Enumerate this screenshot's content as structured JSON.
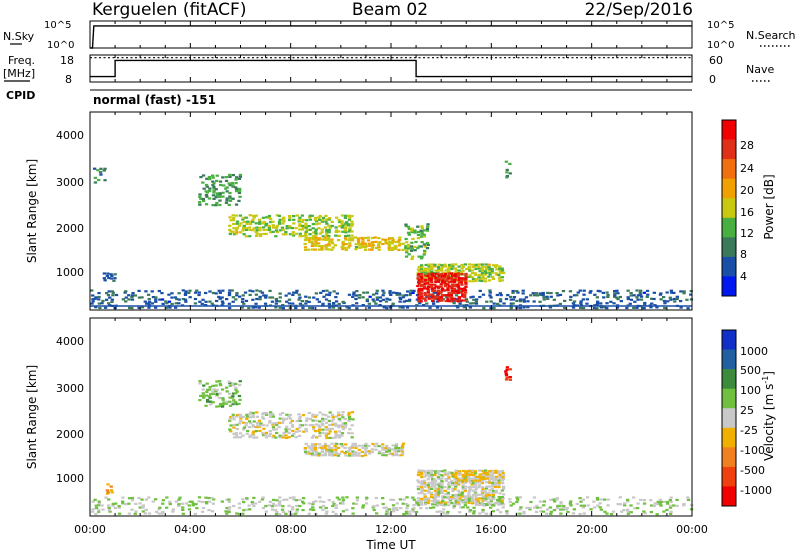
{
  "header": {
    "station": "Kerguelen (fitACF)",
    "beam": "Beam 02",
    "date": "22/Sep/2016"
  },
  "top_panels": {
    "nsky_label": "N.Sky",
    "nsky_ticks": [
      "10^5",
      "10^0"
    ],
    "nsearch_label": "N.Search",
    "nsearch_ticks": [
      "10^5",
      "10^0"
    ],
    "freq_label": "Freq.",
    "freq_unit": "[MHz]",
    "freq_ticks": [
      "18",
      "8"
    ],
    "nave_label": "Nave",
    "nave_ticks": [
      "60",
      "0"
    ],
    "cpid_label": "CPID",
    "cpid_text": "normal (fast) -151"
  },
  "x_axis": {
    "label": "Time UT",
    "ticks": [
      "00:00",
      "04:00",
      "08:00",
      "12:00",
      "16:00",
      "20:00",
      "00:00"
    ]
  },
  "power_panel": {
    "ylabel": "Slant Range [km]",
    "yticks": [
      "4000",
      "3000",
      "2000",
      "1000"
    ],
    "colorbar_label": "Power [dB]",
    "colorbar_ticks": [
      "28",
      "24",
      "20",
      "16",
      "12",
      "8",
      "4"
    ],
    "colors": [
      "#0018f0",
      "#1a4fa8",
      "#3a7a5a",
      "#48b040",
      "#c8c810",
      "#f0a000",
      "#f07010",
      "#e03018",
      "#f00000"
    ]
  },
  "velocity_panel": {
    "ylabel": "Slant Range [km]",
    "yticks": [
      "4000",
      "3000",
      "2000",
      "1000"
    ],
    "colorbar_label": "Velocity [m s",
    "colorbar_label_sup": "-1",
    "colorbar_label_end": "]",
    "colorbar_ticks": [
      "1000",
      "500",
      "100",
      "25",
      "-25",
      "-100",
      "-500",
      "-1000"
    ],
    "colors": [
      "#1030c8",
      "#2060a0",
      "#3c8a3c",
      "#70c040",
      "#c8c8c8",
      "#f0b000",
      "#f08020",
      "#f04010",
      "#f00000"
    ]
  },
  "chart_data": [
    {
      "type": "line",
      "title": "N.Sky / N.Search",
      "xlabel": "Time UT",
      "xlim": [
        0,
        24
      ],
      "ylim_log10": [
        0,
        5
      ],
      "series": [
        {
          "x": [
            0,
            0.1,
            0.15,
            24
          ],
          "values": [
            0,
            0,
            4.1,
            4.1
          ]
        }
      ]
    },
    {
      "type": "line",
      "title": "Freq. / Nave",
      "xlabel": "Time UT",
      "xlim": [
        0,
        24
      ],
      "ylim": [
        8,
        18
      ],
      "series": [
        {
          "x": [
            0,
            1,
            1,
            13,
            13,
            24
          ],
          "values": [
            10,
            10,
            16,
            16,
            10,
            10
          ]
        },
        {
          "x": [
            0,
            24
          ],
          "values": [
            17,
            17
          ]
        }
      ]
    },
    {
      "type": "heatmap",
      "title": "Power [dB]",
      "xlabel": "Time UT",
      "ylabel": "Slant Range [km]",
      "xlim": [
        0,
        24
      ],
      "ylim": [
        180,
        4600
      ],
      "zlim": [
        0,
        30
      ],
      "regions": [
        {
          "t0": 0.0,
          "t1": 24.0,
          "r0": 200,
          "r1": 620,
          "density": 0.35,
          "v": 6
        },
        {
          "t0": 0.1,
          "t1": 0.6,
          "r0": 3000,
          "r1": 3400,
          "density": 0.3,
          "v": 8
        },
        {
          "t0": 0.5,
          "t1": 1.0,
          "r0": 800,
          "r1": 1000,
          "density": 0.5,
          "v": 6
        },
        {
          "t0": 4.3,
          "t1": 6.0,
          "r0": 2500,
          "r1": 3200,
          "density": 0.4,
          "v": 10
        },
        {
          "t0": 5.5,
          "t1": 10.5,
          "r0": 1800,
          "r1": 2300,
          "density": 0.55,
          "v": 14
        },
        {
          "t0": 8.5,
          "t1": 12.5,
          "r0": 1500,
          "r1": 1800,
          "density": 0.6,
          "v": 16
        },
        {
          "t0": 12.5,
          "t1": 13.5,
          "r0": 1300,
          "r1": 2100,
          "density": 0.5,
          "v": 12
        },
        {
          "t0": 13.0,
          "t1": 16.5,
          "r0": 800,
          "r1": 1200,
          "density": 0.8,
          "v": 14
        },
        {
          "t0": 13.0,
          "t1": 15.0,
          "r0": 350,
          "r1": 1000,
          "density": 0.9,
          "v": 27
        },
        {
          "t0": 16.5,
          "t1": 16.8,
          "r0": 3100,
          "r1": 3500,
          "density": 0.6,
          "v": 10
        }
      ]
    },
    {
      "type": "heatmap",
      "title": "Velocity [m s-1]",
      "xlabel": "Time UT",
      "ylabel": "Slant Range [km]",
      "xlim": [
        0,
        24
      ],
      "ylim": [
        180,
        4600
      ],
      "zlim": [
        -1000,
        1000
      ],
      "regions": [
        {
          "t0": 0.0,
          "t1": 24.0,
          "r0": 200,
          "r1": 600,
          "density": 0.3,
          "v": 100
        },
        {
          "t0": 0.6,
          "t1": 0.9,
          "r0": 600,
          "r1": 900,
          "density": 0.4,
          "v": -300
        },
        {
          "t0": 4.3,
          "t1": 6.0,
          "r0": 2600,
          "r1": 3200,
          "density": 0.4,
          "v": 200
        },
        {
          "t0": 5.5,
          "t1": 10.5,
          "r0": 1900,
          "r1": 2500,
          "density": 0.5,
          "v": 0
        },
        {
          "t0": 8.5,
          "t1": 12.5,
          "r0": 1500,
          "r1": 1800,
          "density": 0.7,
          "v": 0
        },
        {
          "t0": 13.0,
          "t1": 16.5,
          "r0": 400,
          "r1": 1200,
          "density": 0.8,
          "v": 0
        },
        {
          "t0": 14.5,
          "t1": 16.0,
          "r0": 900,
          "r1": 1200,
          "density": 0.6,
          "v": -150
        },
        {
          "t0": 16.5,
          "t1": 16.8,
          "r0": 3200,
          "r1": 3500,
          "density": 0.6,
          "v": -800
        }
      ]
    }
  ]
}
